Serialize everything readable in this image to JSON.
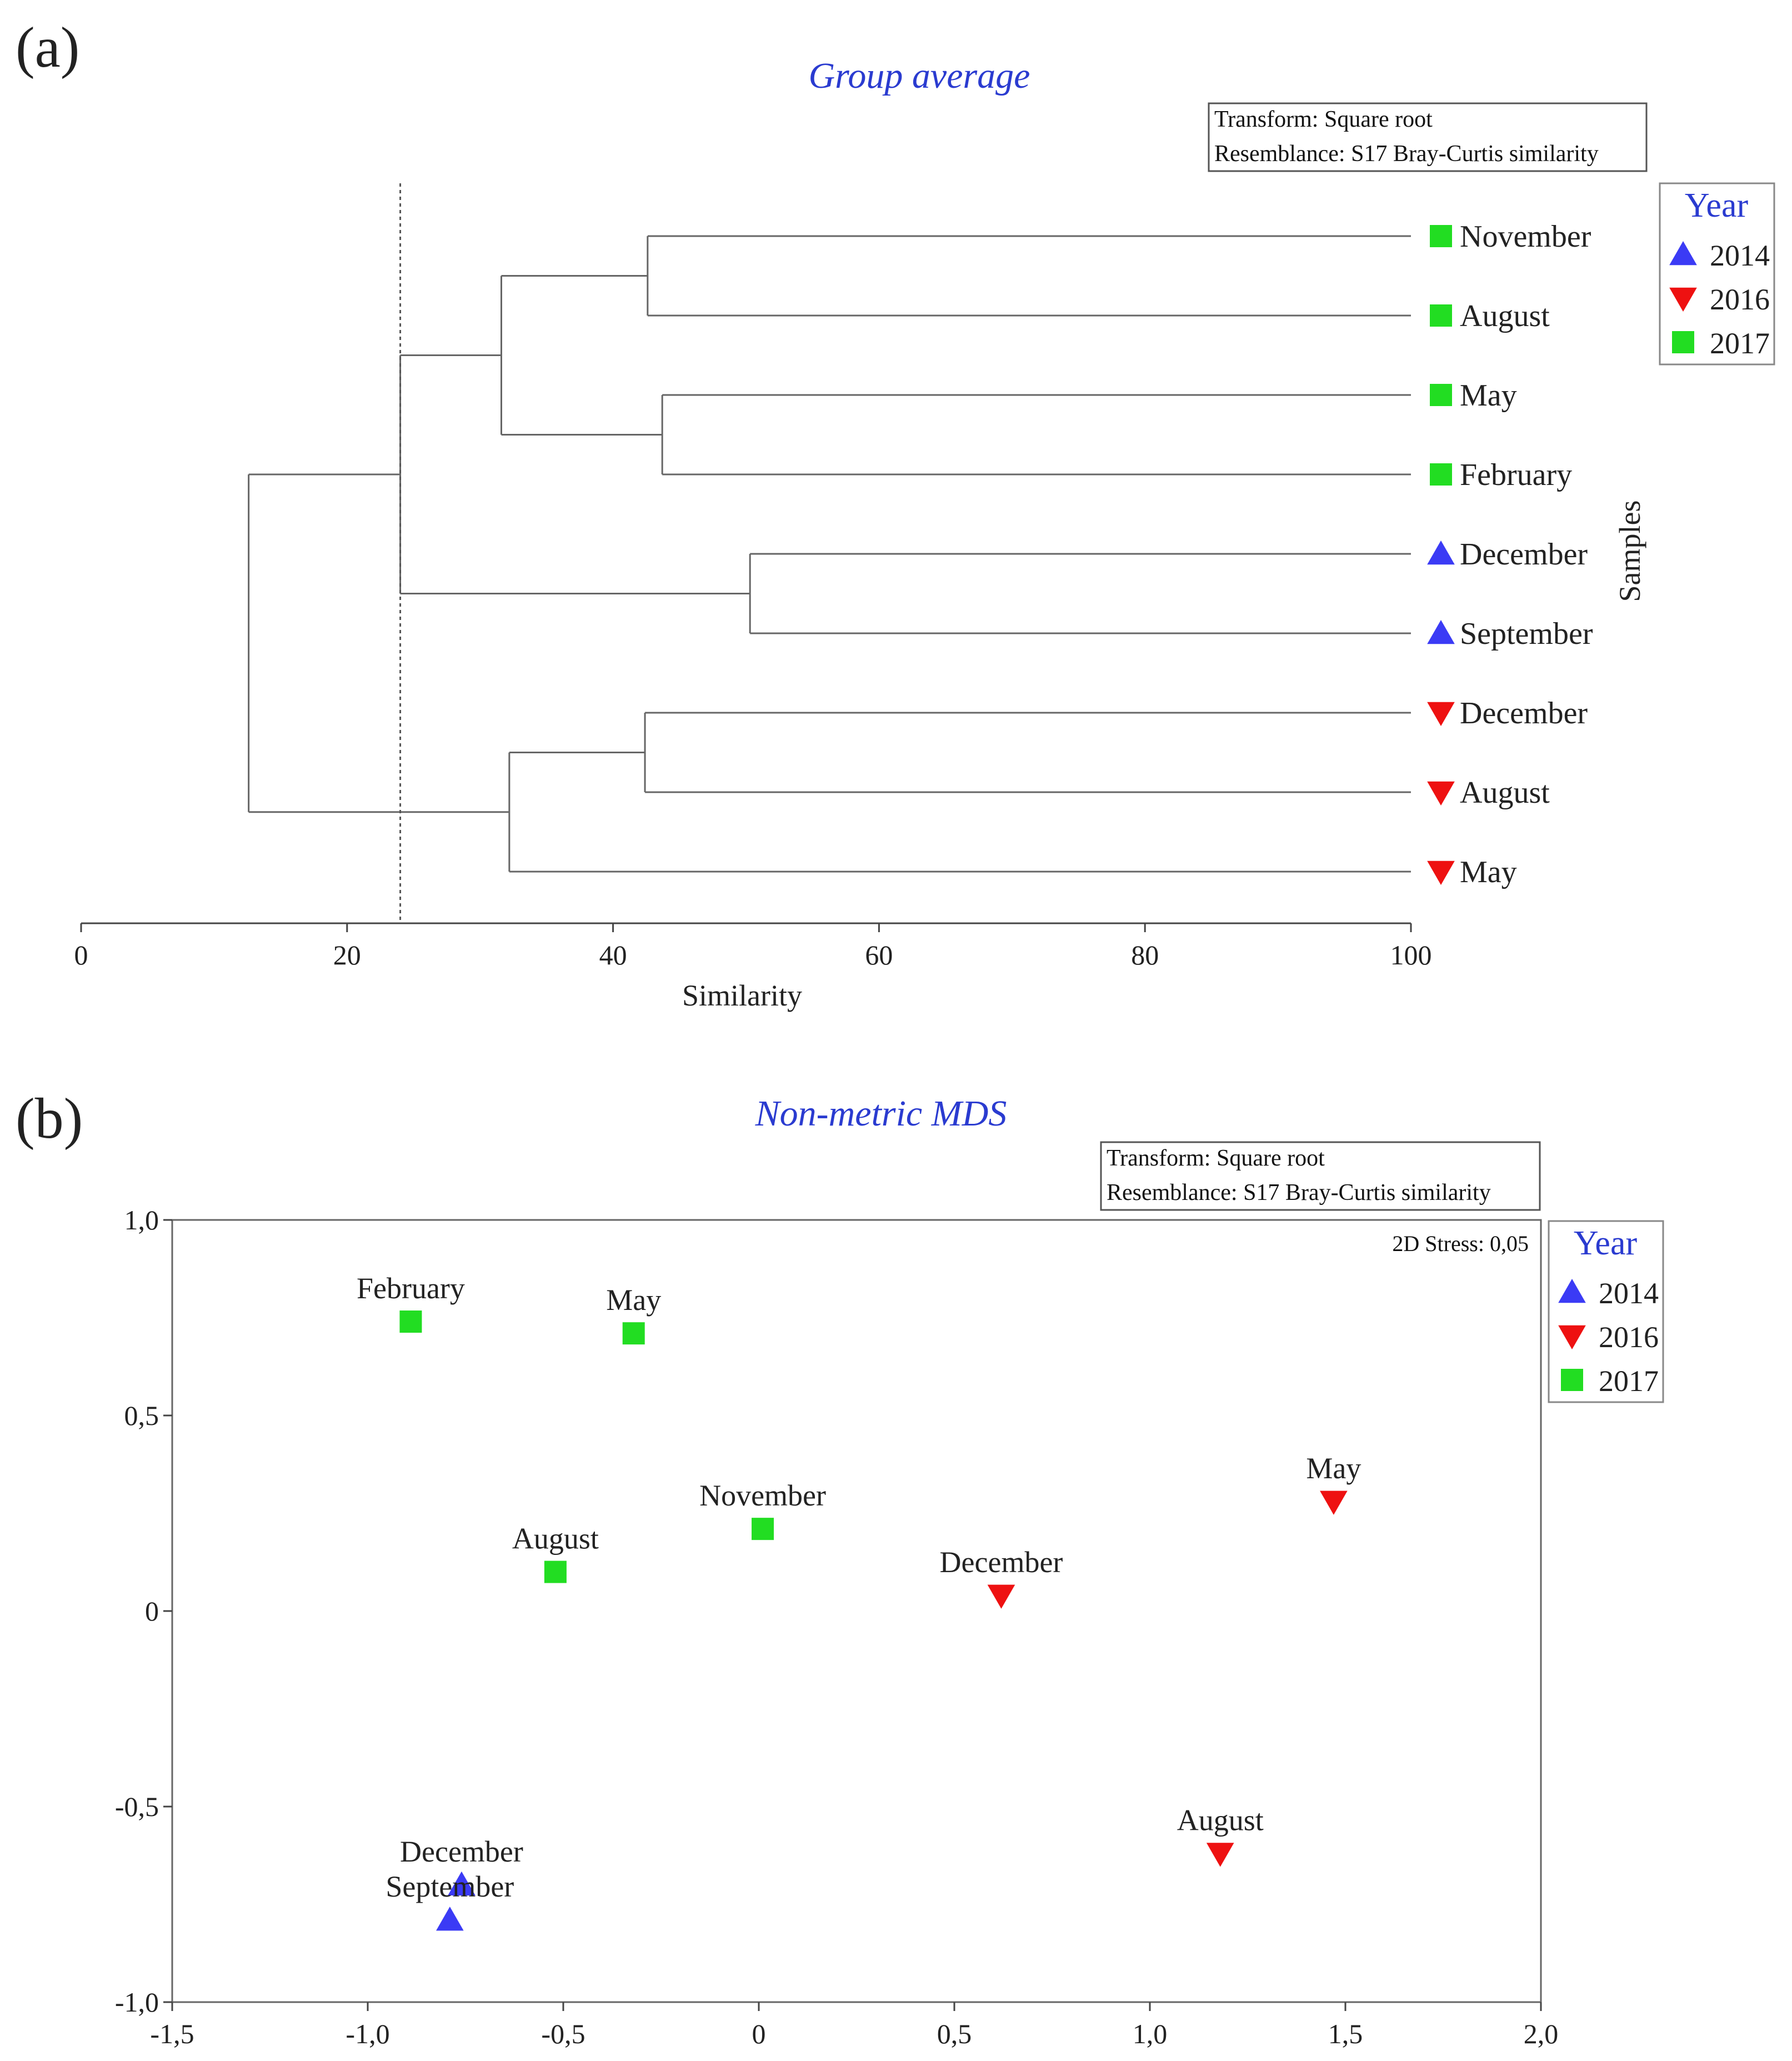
{
  "chart_data": [
    {
      "panel_label": "(a)",
      "type": "dendrogram",
      "title": "Group average",
      "info_box": [
        "Transform: Square root",
        "Resemblance: S17 Bray-Curtis similarity"
      ],
      "xlabel": "Similarity",
      "ylabel": "Samples",
      "xlim": [
        0,
        100
      ],
      "x_ticks": [
        0,
        20,
        40,
        60,
        80,
        100
      ],
      "cut_line": 24,
      "legend": {
        "title": "Year",
        "entries": [
          {
            "label": "2014",
            "marker": "triangle-up",
            "color": "#3b3bf5"
          },
          {
            "label": "2016",
            "marker": "triangle-down",
            "color": "#ee1111"
          },
          {
            "label": "2017",
            "marker": "square",
            "color": "#22dd22"
          }
        ]
      },
      "leaves": [
        {
          "label": "November",
          "year": "2017"
        },
        {
          "label": "August",
          "year": "2017"
        },
        {
          "label": "May",
          "year": "2017"
        },
        {
          "label": "February",
          "year": "2017"
        },
        {
          "label": "December",
          "year": "2014"
        },
        {
          "label": "September",
          "year": "2014"
        },
        {
          "label": "December",
          "year": "2016"
        },
        {
          "label": "August",
          "year": "2016"
        },
        {
          "label": "May",
          "year": "2016"
        }
      ],
      "merges": [
        {
          "id": "A",
          "children": [
            0,
            1
          ],
          "similarity": 42.6
        },
        {
          "id": "B",
          "children": [
            2,
            3
          ],
          "similarity": 43.7
        },
        {
          "id": "C",
          "children": [
            "A",
            "B"
          ],
          "similarity": 31.6
        },
        {
          "id": "D",
          "children": [
            4,
            5
          ],
          "similarity": 50.3
        },
        {
          "id": "E",
          "children": [
            "C",
            "D"
          ],
          "similarity": 24.0
        },
        {
          "id": "F",
          "children": [
            6,
            7
          ],
          "similarity": 42.4
        },
        {
          "id": "G",
          "children": [
            "F",
            8
          ],
          "similarity": 32.2
        },
        {
          "id": "H",
          "children": [
            "E",
            "G"
          ],
          "similarity": 12.6
        }
      ]
    },
    {
      "panel_label": "(b)",
      "type": "scatter",
      "title": "Non-metric MDS",
      "info_box": [
        "Transform: Square root",
        "Resemblance: S17 Bray-Curtis similarity"
      ],
      "stress_label": "2D Stress: 0,05",
      "xlim": [
        -1.5,
        2.0
      ],
      "ylim": [
        -1.0,
        1.0
      ],
      "x_ticks": [
        -1.5,
        -1.0,
        -0.5,
        0,
        0.5,
        1.0,
        1.5,
        2.0
      ],
      "x_tick_labels": [
        "-1,5",
        "-1,0",
        "-0,5",
        "0",
        "0,5",
        "1,0",
        "1,5",
        "2,0"
      ],
      "y_ticks": [
        1.0,
        0.5,
        0,
        -0.5,
        -1.0
      ],
      "y_tick_labels": [
        "1,0",
        "0,5",
        "0",
        "-0,5",
        "-1,0"
      ],
      "legend": {
        "title": "Year",
        "entries": [
          {
            "label": "2014",
            "marker": "triangle-up",
            "color": "#3b3bf5"
          },
          {
            "label": "2016",
            "marker": "triangle-down",
            "color": "#ee1111"
          },
          {
            "label": "2017",
            "marker": "square",
            "color": "#22dd22"
          }
        ]
      },
      "points": [
        {
          "label": "February",
          "year": "2017",
          "x": -0.89,
          "y": 0.74
        },
        {
          "label": "May",
          "year": "2017",
          "x": -0.32,
          "y": 0.71
        },
        {
          "label": "August",
          "year": "2017",
          "x": -0.52,
          "y": 0.1
        },
        {
          "label": "November",
          "year": "2017",
          "x": 0.01,
          "y": 0.21
        },
        {
          "label": "December",
          "year": "2016",
          "x": 0.62,
          "y": 0.04
        },
        {
          "label": "May",
          "year": "2016",
          "x": 1.47,
          "y": 0.28
        },
        {
          "label": "August",
          "year": "2016",
          "x": 1.18,
          "y": -0.62
        },
        {
          "label": "December",
          "year": "2014",
          "x": -0.76,
          "y": -0.7
        },
        {
          "label": "September",
          "year": "2014",
          "x": -0.79,
          "y": -0.79
        }
      ]
    }
  ]
}
